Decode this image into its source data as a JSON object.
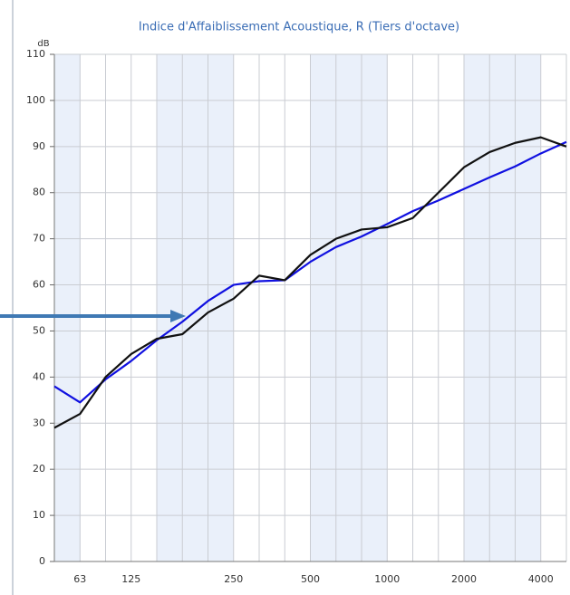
{
  "chart_data": {
    "type": "line",
    "title": "Indice d'Affaiblissement Acoustique, R (Tiers d'octave)",
    "y_unit": "dB",
    "categories": [
      null,
      "63",
      null,
      "125",
      null,
      null,
      null,
      "250",
      null,
      null,
      "500",
      null,
      null,
      "1000",
      null,
      null,
      "2000",
      null,
      null,
      "4000",
      null
    ],
    "series": [
      {
        "color": "#1010e0",
        "values": [
          38,
          34.5,
          39.5,
          43.5,
          48,
          52,
          56.5,
          60,
          60.8,
          61,
          65,
          68.2,
          70.5,
          73.2,
          76,
          78.3,
          80.8,
          83.3,
          85.7,
          88.5,
          91
        ]
      },
      {
        "color": "#111111",
        "values": [
          29,
          32,
          40,
          45,
          48.3,
          49.3,
          54,
          57,
          62,
          61,
          66.5,
          70,
          72,
          72.5,
          74.5,
          80,
          85.5,
          88.8,
          90.8,
          92,
          90
        ]
      }
    ],
    "ylim": [
      0,
      110
    ],
    "yticks": [
      0,
      10,
      20,
      30,
      40,
      50,
      60,
      70,
      80,
      90,
      100,
      110
    ],
    "grid": true
  }
}
